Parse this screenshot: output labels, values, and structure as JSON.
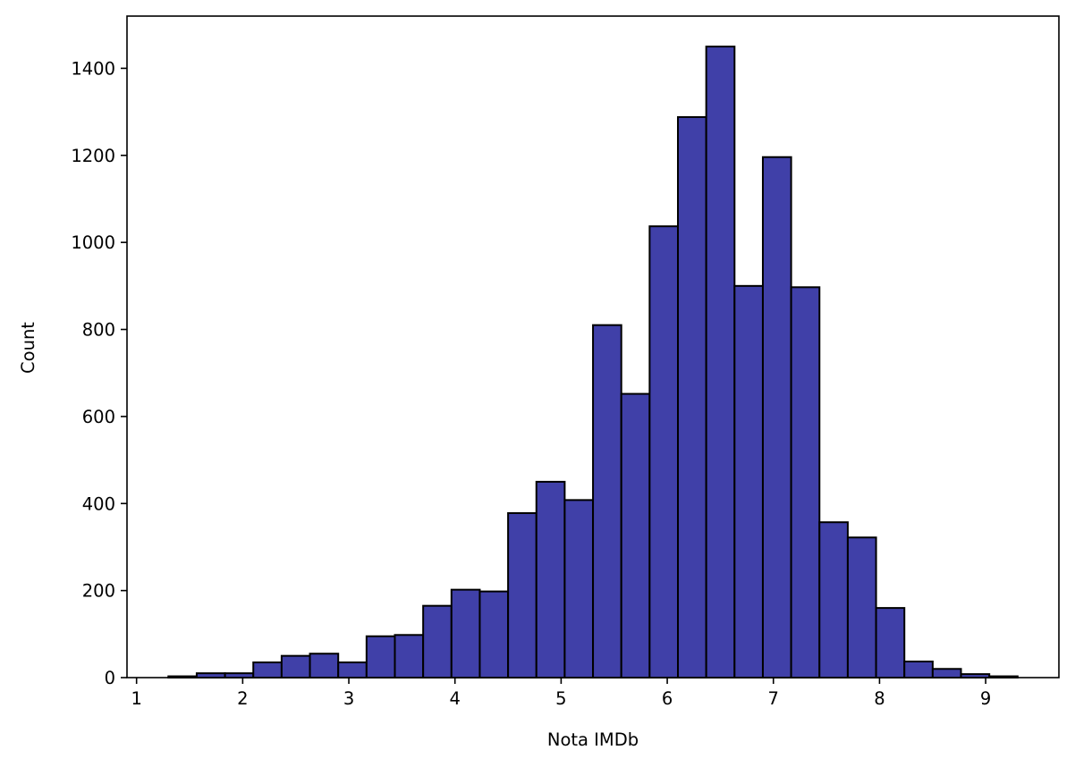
{
  "chart_data": {
    "type": "bar",
    "subtype": "histogram",
    "title": "",
    "xlabel": "Nota IMDb",
    "ylabel": "Count",
    "xlim": [
      0.91,
      9.69
    ],
    "ylim": [
      0,
      1520
    ],
    "xticks": [
      1,
      2,
      3,
      4,
      5,
      6,
      7,
      8,
      9
    ],
    "yticks": [
      0,
      200,
      400,
      600,
      800,
      1000,
      1200,
      1400
    ],
    "grid": false,
    "legend": "none",
    "bin_start": 1.3,
    "bin_width": 0.2667,
    "values": [
      3,
      10,
      10,
      35,
      50,
      55,
      35,
      95,
      98,
      165,
      202,
      198,
      378,
      450,
      408,
      810,
      652,
      1037,
      1288,
      1450,
      900,
      1196,
      897,
      357,
      322,
      160,
      37,
      20,
      8,
      3
    ],
    "bar_fill": "#4040a8",
    "bar_edge": "#000000"
  }
}
